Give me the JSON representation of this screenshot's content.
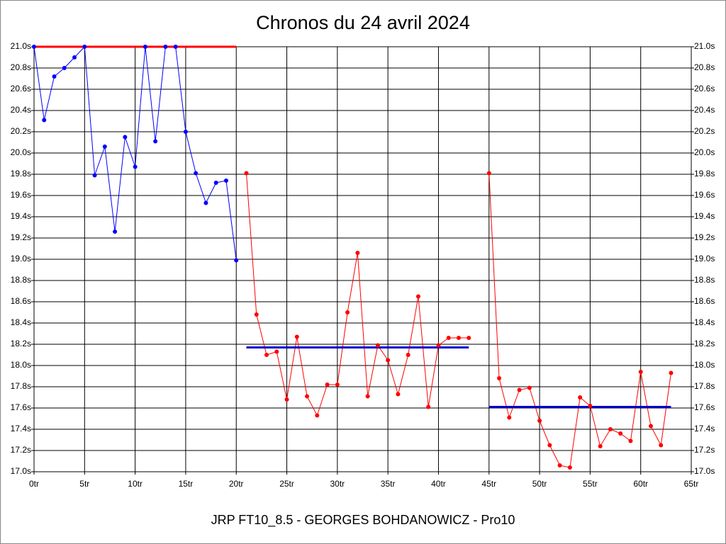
{
  "chart_data": {
    "type": "line",
    "title": "Chronos du 24 avril 2024",
    "subtitle": "JRP FT10_8.5 - GEORGES BOHDANOWICZ - Pro10",
    "xlim": [
      0,
      65
    ],
    "xticks": [
      {
        "value": 0,
        "label": "0tr"
      },
      {
        "value": 5,
        "label": "5tr"
      },
      {
        "value": 10,
        "label": "10tr"
      },
      {
        "value": 15,
        "label": "15tr"
      },
      {
        "value": 20,
        "label": "20tr"
      },
      {
        "value": 25,
        "label": "25tr"
      },
      {
        "value": 30,
        "label": "30tr"
      },
      {
        "value": 35,
        "label": "35tr"
      },
      {
        "value": 40,
        "label": "40tr"
      },
      {
        "value": 45,
        "label": "45tr"
      },
      {
        "value": 50,
        "label": "50tr"
      },
      {
        "value": 55,
        "label": "55tr"
      },
      {
        "value": 60,
        "label": "60tr"
      },
      {
        "value": 65,
        "label": "65tr"
      }
    ],
    "ylim": [
      17.0,
      21.0
    ],
    "yticks": [
      {
        "value": 21.0,
        "label": "21.0s"
      },
      {
        "value": 20.8,
        "label": "20.8s"
      },
      {
        "value": 20.6,
        "label": "20.6s"
      },
      {
        "value": 20.4,
        "label": "20.4s"
      },
      {
        "value": 20.2,
        "label": "20.2s"
      },
      {
        "value": 20.0,
        "label": "20.0s"
      },
      {
        "value": 19.8,
        "label": "19.8s"
      },
      {
        "value": 19.6,
        "label": "19.6s"
      },
      {
        "value": 19.4,
        "label": "19.4s"
      },
      {
        "value": 19.2,
        "label": "19.2s"
      },
      {
        "value": 19.0,
        "label": "19.0s"
      },
      {
        "value": 18.8,
        "label": "18.8s"
      },
      {
        "value": 18.6,
        "label": "18.6s"
      },
      {
        "value": 18.4,
        "label": "18.4s"
      },
      {
        "value": 18.2,
        "label": "18.2s"
      },
      {
        "value": 18.0,
        "label": "18.0s"
      },
      {
        "value": 17.8,
        "label": "17.8s"
      },
      {
        "value": 17.6,
        "label": "17.6s"
      },
      {
        "value": 17.4,
        "label": "17.4s"
      },
      {
        "value": 17.2,
        "label": "17.2s"
      },
      {
        "value": 17.0,
        "label": "17.0s"
      }
    ],
    "grid": true,
    "series": [
      {
        "color": "#0000ff",
        "x": [
          0,
          1,
          2,
          3,
          4,
          5,
          6,
          7,
          8,
          9,
          10,
          11,
          12,
          13,
          14,
          15,
          16,
          17,
          18,
          19,
          20
        ],
        "values": [
          21.0,
          20.31,
          20.72,
          20.8,
          20.9,
          21.0,
          19.79,
          20.06,
          19.26,
          20.15,
          19.87,
          21.0,
          20.11,
          21.0,
          21.0,
          20.2,
          19.81,
          19.53,
          19.72,
          19.74,
          18.99
        ]
      },
      {
        "color": "#ff0000",
        "x": [
          21,
          22,
          23,
          24,
          25,
          26,
          27,
          28,
          29,
          30,
          31,
          32,
          33,
          34,
          35,
          36,
          37,
          38,
          39,
          40,
          41,
          42,
          43,
          44,
          45,
          46,
          47,
          48,
          49,
          50,
          51,
          52,
          53,
          54,
          55,
          56,
          57,
          58,
          59,
          60,
          61,
          62,
          63
        ],
        "values": [
          19.81,
          18.48,
          18.1,
          18.13,
          17.68,
          18.27,
          17.71,
          17.53,
          17.82,
          17.82,
          18.5,
          19.06,
          17.71,
          18.19,
          18.05,
          17.73,
          18.1,
          18.65,
          17.61,
          18.19,
          18.26,
          18.26,
          18.26,
          null,
          19.81,
          17.88,
          17.51,
          17.77,
          17.79,
          17.48,
          17.25,
          17.06,
          17.04,
          17.7,
          17.62,
          17.24,
          17.4,
          17.36,
          17.29,
          17.94,
          17.43,
          17.25,
          17.93
        ]
      }
    ],
    "ref_lines": [
      {
        "color": "#ff0000",
        "x": [
          0,
          20
        ],
        "value": 21.0
      },
      {
        "color": "#0000cc",
        "x": [
          21,
          43
        ],
        "value": 18.17
      },
      {
        "color": "#0000cc",
        "x": [
          45,
          63
        ],
        "value": 17.61
      }
    ]
  }
}
